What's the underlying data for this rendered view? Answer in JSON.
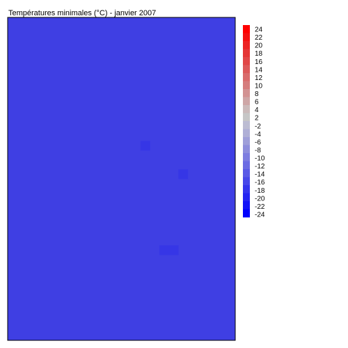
{
  "chart_data": {
    "type": "heatmap",
    "title": "Températures minimales (°C) - janvier 2007",
    "xlabel": "",
    "ylabel": "",
    "value_range": [
      -24,
      24
    ],
    "grid_size": {
      "cols": 24,
      "rows": 34
    },
    "background_value": -17,
    "background_color": "#3f3fe3",
    "cells": [
      {
        "col": 14,
        "row": 13,
        "value": -18,
        "color": "#3636e6"
      },
      {
        "col": 18,
        "row": 16,
        "value": -18,
        "color": "#3636e6"
      },
      {
        "col": 16,
        "row": 24,
        "value": -18,
        "color": "#3636e6"
      },
      {
        "col": 17,
        "row": 24,
        "value": -18,
        "color": "#3636e6"
      }
    ],
    "colorbar": {
      "tick_labels": [
        "24",
        "22",
        "20",
        "18",
        "16",
        "14",
        "12",
        "10",
        "8",
        "6",
        "4",
        "2",
        "-2",
        "-4",
        "-6",
        "-8",
        "-10",
        "-12",
        "-14",
        "-16",
        "-18",
        "-20",
        "-22",
        "-24"
      ],
      "colors": [
        "#ff0000",
        "#f41111",
        "#ec2323",
        "#e53535",
        "#e14646",
        "#dc5959",
        "#d96b6b",
        "#d57d7d",
        "#d29292",
        "#cea6a6",
        "#cbbaba",
        "#c6c6c6",
        "#bcbcd2",
        "#afafd6",
        "#9f9fd9",
        "#8e8edc",
        "#7d7de0",
        "#6b6be3",
        "#5a5ae6",
        "#4848e9",
        "#3535ed",
        "#2424f2",
        "#1212f7",
        "#0000fd"
      ]
    }
  }
}
